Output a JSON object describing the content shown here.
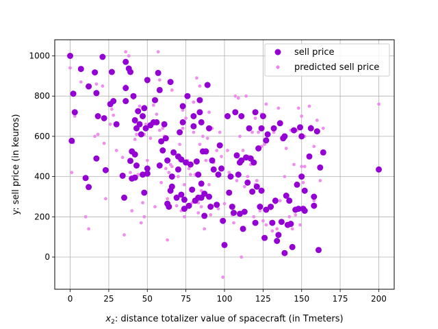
{
  "chart_data": {
    "type": "scatter",
    "xlabel_prefix": "x",
    "xlabel_sub": "2",
    "xlabel_rest": ": distance totalizer value of spacecraft (in Tmeters)",
    "ylabel": "y: sell price (in keuros)",
    "xlim": [
      -10,
      210
    ],
    "ylim": [
      -160,
      1080
    ],
    "xticks": [
      0,
      25,
      50,
      75,
      100,
      125,
      150,
      175,
      200
    ],
    "yticks": [
      0,
      200,
      400,
      600,
      800,
      1000
    ],
    "grid": true,
    "legend_position": "top-right",
    "colors": {
      "sell": "#9400d3",
      "predicted": "#ee82ee"
    },
    "series": [
      {
        "name": "sell price",
        "marker": "large",
        "points": [
          [
            0,
            1000
          ],
          [
            1,
            578
          ],
          [
            2,
            812
          ],
          [
            3,
            720
          ],
          [
            7,
            935
          ],
          [
            10,
            393
          ],
          [
            12,
            848
          ],
          [
            12,
            348
          ],
          [
            16,
            918
          ],
          [
            17,
            815
          ],
          [
            17,
            490
          ],
          [
            18,
            700
          ],
          [
            21,
            995
          ],
          [
            22,
            690
          ],
          [
            23,
            432
          ],
          [
            26,
            760
          ],
          [
            27,
            920
          ],
          [
            28,
            775
          ],
          [
            30,
            660
          ],
          [
            34,
            404
          ],
          [
            35,
            295
          ],
          [
            36,
            970
          ],
          [
            36,
            840
          ],
          [
            36,
            775
          ],
          [
            38,
            937
          ],
          [
            39,
            920
          ],
          [
            39,
            478
          ],
          [
            40,
            390
          ],
          [
            40,
            525
          ],
          [
            41,
            800
          ],
          [
            42,
            510
          ],
          [
            42,
            680
          ],
          [
            42,
            395
          ],
          [
            43,
            455
          ],
          [
            43,
            640
          ],
          [
            44,
            725
          ],
          [
            45,
            660
          ],
          [
            46,
            610
          ],
          [
            47,
            410
          ],
          [
            47,
            700
          ],
          [
            48,
            320
          ],
          [
            48,
            740
          ],
          [
            49,
            640
          ],
          [
            50,
            440
          ],
          [
            50,
            415
          ],
          [
            50,
            880
          ],
          [
            52,
            655
          ],
          [
            54,
            670
          ],
          [
            55,
            780
          ],
          [
            56,
            670
          ],
          [
            57,
            915
          ],
          [
            58,
            455
          ],
          [
            58,
            830
          ],
          [
            59,
            575
          ],
          [
            60,
            530
          ],
          [
            61,
            660
          ],
          [
            62,
            590
          ],
          [
            63,
            265
          ],
          [
            63,
            480
          ],
          [
            64,
            250
          ],
          [
            65,
            330
          ],
          [
            65,
            870
          ],
          [
            66,
            350
          ],
          [
            66,
            400
          ],
          [
            67,
            520
          ],
          [
            69,
            295
          ],
          [
            70,
            435
          ],
          [
            70,
            500
          ],
          [
            71,
            620
          ],
          [
            72,
            310
          ],
          [
            72,
            485
          ],
          [
            73,
            750
          ],
          [
            73,
            670
          ],
          [
            74,
            285
          ],
          [
            74,
            240
          ],
          [
            75,
            470
          ],
          [
            76,
            800
          ],
          [
            77,
            255
          ],
          [
            78,
            460
          ],
          [
            79,
            335
          ],
          [
            80,
            650
          ],
          [
            80,
            700
          ],
          [
            81,
            280
          ],
          [
            82,
            475
          ],
          [
            83,
            295
          ],
          [
            83,
            410
          ],
          [
            84,
            780
          ],
          [
            84,
            720
          ],
          [
            85,
            670
          ],
          [
            85,
            295
          ],
          [
            85,
            365
          ],
          [
            86,
            525
          ],
          [
            87,
            205
          ],
          [
            87,
            315
          ],
          [
            88,
            525
          ],
          [
            89,
            855
          ],
          [
            90,
            640
          ],
          [
            90,
            300
          ],
          [
            91,
            250
          ],
          [
            92,
            480
          ],
          [
            93,
            435
          ],
          [
            95,
            260
          ],
          [
            96,
            410
          ],
          [
            97,
            555
          ],
          [
            98,
            440
          ],
          [
            99,
            180
          ],
          [
            100,
            60
          ],
          [
            102,
            700
          ],
          [
            103,
            320
          ],
          [
            104,
            400
          ],
          [
            105,
            250
          ],
          [
            106,
            220
          ],
          [
            107,
            720
          ],
          [
            108,
            505
          ],
          [
            109,
            410
          ],
          [
            110,
            470
          ],
          [
            110,
            215
          ],
          [
            111,
            700
          ],
          [
            111,
            480
          ],
          [
            112,
            140
          ],
          [
            113,
            225
          ],
          [
            114,
            495
          ],
          [
            115,
            370
          ],
          [
            116,
            640
          ],
          [
            117,
            490
          ],
          [
            118,
            325
          ],
          [
            119,
            470
          ],
          [
            120,
            720
          ],
          [
            120,
            170
          ],
          [
            121,
            350
          ],
          [
            122,
            540
          ],
          [
            123,
            250
          ],
          [
            124,
            640
          ],
          [
            124,
            330
          ],
          [
            125,
            700
          ],
          [
            126,
            95
          ],
          [
            127,
            235
          ],
          [
            127,
            580
          ],
          [
            128,
            610
          ],
          [
            130,
            250
          ],
          [
            131,
            170
          ],
          [
            132,
            640
          ],
          [
            133,
            280
          ],
          [
            134,
            80
          ],
          [
            135,
            110
          ],
          [
            136,
            665
          ],
          [
            137,
            175
          ],
          [
            138,
            590
          ],
          [
            139,
            600
          ],
          [
            139,
            20
          ],
          [
            140,
            305
          ],
          [
            141,
            160
          ],
          [
            142,
            280
          ],
          [
            143,
            165
          ],
          [
            144,
            50
          ],
          [
            145,
            630
          ],
          [
            146,
            235
          ],
          [
            147,
            360
          ],
          [
            148,
            240
          ],
          [
            149,
            645
          ],
          [
            150,
            400
          ],
          [
            150,
            600
          ],
          [
            151,
            240
          ],
          [
            152,
            230
          ],
          [
            152,
            330
          ],
          [
            155,
            500
          ],
          [
            156,
            640
          ],
          [
            158,
            255
          ],
          [
            158,
            300
          ],
          [
            160,
            625
          ],
          [
            161,
            35
          ],
          [
            162,
            445
          ],
          [
            164,
            520
          ],
          [
            200,
            435
          ]
        ]
      },
      {
        "name": "predicted sell price",
        "marker": "small",
        "points": [
          [
            0,
            940
          ],
          [
            1,
            420
          ],
          [
            2,
            570
          ],
          [
            3,
            700
          ],
          [
            7,
            870
          ],
          [
            10,
            200
          ],
          [
            12,
            140
          ],
          [
            16,
            600
          ],
          [
            17,
            860
          ],
          [
            18,
            610
          ],
          [
            21,
            850
          ],
          [
            22,
            565
          ],
          [
            23,
            290
          ],
          [
            26,
            660
          ],
          [
            27,
            735
          ],
          [
            28,
            705
          ],
          [
            30,
            530
          ],
          [
            34,
            495
          ],
          [
            35,
            110
          ],
          [
            36,
            1020
          ],
          [
            36,
            850
          ],
          [
            38,
            1000
          ],
          [
            39,
            420
          ],
          [
            40,
            230
          ],
          [
            41,
            790
          ],
          [
            42,
            585
          ],
          [
            42,
            670
          ],
          [
            43,
            610
          ],
          [
            44,
            410
          ],
          [
            45,
            750
          ],
          [
            46,
            170
          ],
          [
            47,
            270
          ],
          [
            48,
            200
          ],
          [
            48,
            610
          ],
          [
            49,
            660
          ],
          [
            50,
            870
          ],
          [
            50,
            480
          ],
          [
            52,
            590
          ],
          [
            54,
            755
          ],
          [
            55,
            250
          ],
          [
            56,
            710
          ],
          [
            57,
            1020
          ],
          [
            58,
            630
          ],
          [
            58,
            880
          ],
          [
            59,
            370
          ],
          [
            60,
            640
          ],
          [
            61,
            600
          ],
          [
            62,
            440
          ],
          [
            63,
            85
          ],
          [
            63,
            290
          ],
          [
            64,
            420
          ],
          [
            65,
            460
          ],
          [
            66,
            450
          ],
          [
            66,
            830
          ],
          [
            67,
            520
          ],
          [
            69,
            255
          ],
          [
            70,
            400
          ],
          [
            71,
            560
          ],
          [
            72,
            230
          ],
          [
            73,
            730
          ],
          [
            73,
            640
          ],
          [
            74,
            200
          ],
          [
            74,
            360
          ],
          [
            75,
            690
          ],
          [
            76,
            480
          ],
          [
            77,
            440
          ],
          [
            78,
            410
          ],
          [
            79,
            270
          ],
          [
            80,
            770
          ],
          [
            80,
            620
          ],
          [
            81,
            410
          ],
          [
            82,
            890
          ],
          [
            83,
            270
          ],
          [
            83,
            220
          ],
          [
            84,
            850
          ],
          [
            84,
            560
          ],
          [
            85,
            330
          ],
          [
            85,
            250
          ],
          [
            86,
            600
          ],
          [
            87,
            140
          ],
          [
            88,
            480
          ],
          [
            89,
            590
          ],
          [
            90,
            720
          ],
          [
            90,
            360
          ],
          [
            91,
            210
          ],
          [
            92,
            640
          ],
          [
            93,
            470
          ],
          [
            95,
            530
          ],
          [
            96,
            240
          ],
          [
            97,
            620
          ],
          [
            98,
            500
          ],
          [
            99,
            -100
          ],
          [
            100,
            265
          ],
          [
            102,
            530
          ],
          [
            103,
            420
          ],
          [
            104,
            400
          ],
          [
            105,
            210
          ],
          [
            106,
            170
          ],
          [
            107,
            800
          ],
          [
            108,
            380
          ],
          [
            109,
            790
          ],
          [
            110,
            410
          ],
          [
            110,
            600
          ],
          [
            111,
            0
          ],
          [
            112,
            530
          ],
          [
            113,
            350
          ],
          [
            114,
            800
          ],
          [
            115,
            400
          ],
          [
            116,
            500
          ],
          [
            117,
            460
          ],
          [
            118,
            620
          ],
          [
            119,
            200
          ],
          [
            120,
            690
          ],
          [
            120,
            360
          ],
          [
            121,
            380
          ],
          [
            122,
            620
          ],
          [
            123,
            230
          ],
          [
            124,
            550
          ],
          [
            124,
            710
          ],
          [
            125,
            180
          ],
          [
            126,
            560
          ],
          [
            127,
            160
          ],
          [
            127,
            760
          ],
          [
            128,
            580
          ],
          [
            130,
            240
          ],
          [
            131,
            130
          ],
          [
            132,
            620
          ],
          [
            133,
            270
          ],
          [
            134,
            140
          ],
          [
            135,
            740
          ],
          [
            136,
            280
          ],
          [
            137,
            170
          ],
          [
            138,
            600
          ],
          [
            139,
            400
          ],
          [
            140,
            540
          ],
          [
            141,
            300
          ],
          [
            142,
            200
          ],
          [
            143,
            630
          ],
          [
            144,
            140
          ],
          [
            145,
            460
          ],
          [
            146,
            210
          ],
          [
            147,
            630
          ],
          [
            148,
            740
          ],
          [
            149,
            160
          ],
          [
            150,
            450
          ],
          [
            150,
            700
          ],
          [
            151,
            370
          ],
          [
            152,
            450
          ],
          [
            152,
            600
          ],
          [
            155,
            750
          ],
          [
            156,
            650
          ],
          [
            158,
            550
          ],
          [
            158,
            280
          ],
          [
            160,
            680
          ],
          [
            161,
            30
          ],
          [
            162,
            380
          ],
          [
            164,
            640
          ],
          [
            200,
            760
          ]
        ]
      }
    ]
  }
}
